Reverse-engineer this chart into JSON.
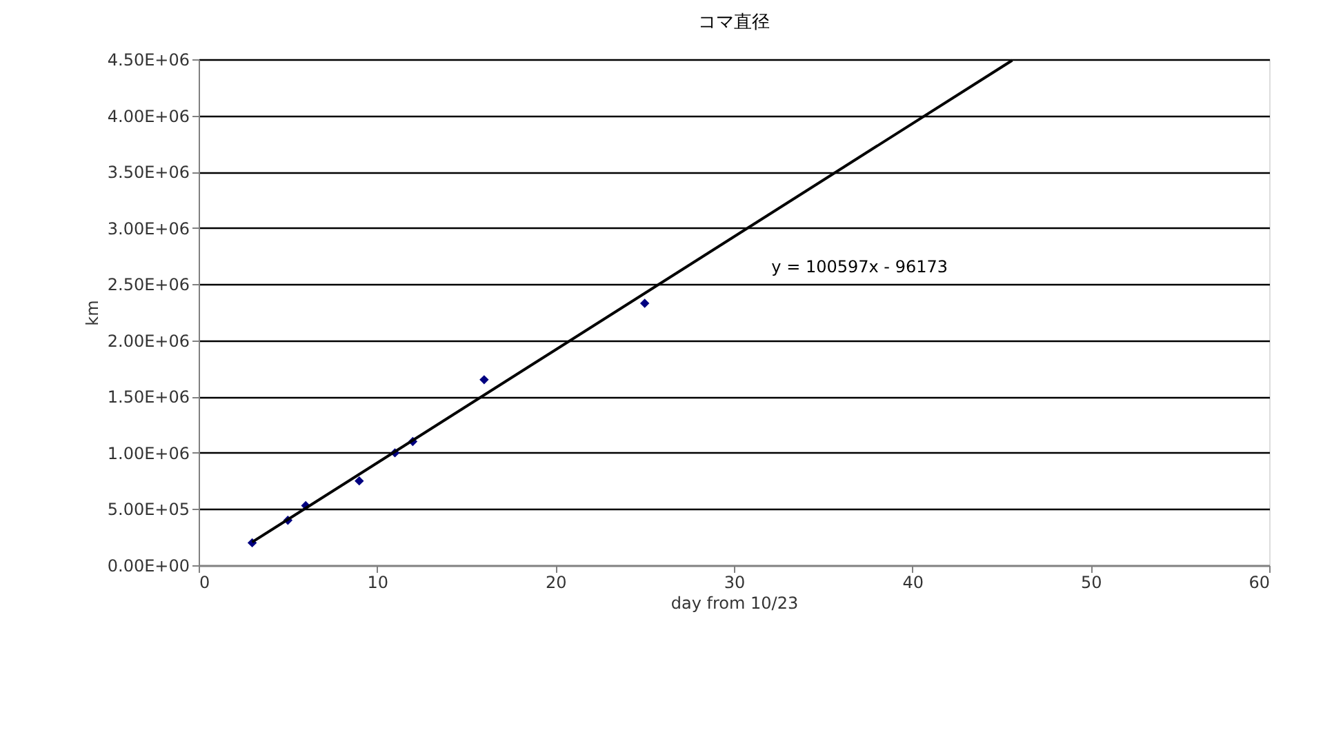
{
  "chart_data": {
    "type": "scatter",
    "title": "コマ直径",
    "xlabel": "day from 10/23",
    "ylabel": "km",
    "series": [
      {
        "color": "#000080",
        "marker": "diamond",
        "x": [
          3,
          5,
          6,
          9,
          11,
          12,
          16,
          25
        ],
        "values": [
          200000,
          400000,
          530000,
          750000,
          1000000,
          1100000,
          1650000,
          2330000
        ]
      },
      {
        "type": "line",
        "color": "#000000",
        "marker": "none",
        "line_style": "solid",
        "x": [
          3,
          45.6
        ],
        "values": [
          206000,
          4491000
        ]
      }
    ],
    "annotations": [
      "y = 100597x - 96173"
    ],
    "xlim": [
      0,
      60
    ],
    "xticks": [
      0,
      10,
      20,
      30,
      40,
      50,
      60
    ],
    "ylim": [
      0,
      4500000
    ],
    "yticks": [
      {
        "value": 0,
        "label": "0.00E+00"
      },
      {
        "value": 500000,
        "label": "5.00E+05"
      },
      {
        "value": 1000000,
        "label": "1.00E+06"
      },
      {
        "value": 1500000,
        "label": "1.50E+06"
      },
      {
        "value": 2000000,
        "label": "2.00E+06"
      },
      {
        "value": 2500000,
        "label": "2.50E+06"
      },
      {
        "value": 3000000,
        "label": "3.00E+06"
      },
      {
        "value": 3500000,
        "label": "3.50E+06"
      },
      {
        "value": 4000000,
        "label": "4.00E+06"
      },
      {
        "value": 4500000,
        "label": "4.50E+06"
      }
    ],
    "grid": "y"
  }
}
